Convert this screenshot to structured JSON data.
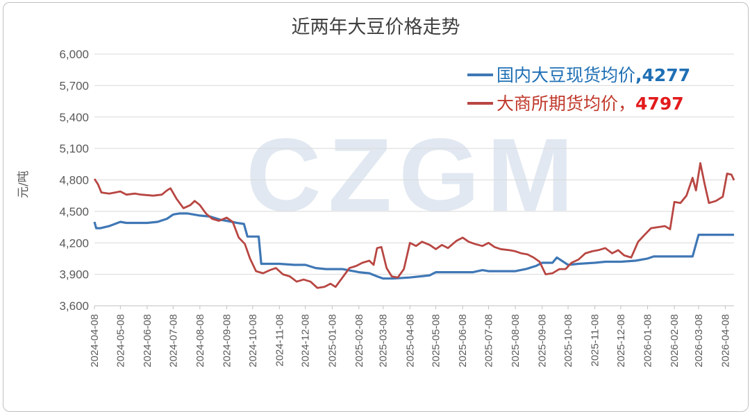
{
  "watermark": "CZGM",
  "chart_data": {
    "type": "line",
    "title": "近两年大豆价格走势",
    "ylabel": "元/吨",
    "xlabel": "",
    "ylim": [
      3600,
      6000
    ],
    "yticks": [
      "3,600",
      "3,900",
      "4,200",
      "4,500",
      "4,800",
      "5,100",
      "5,400",
      "5,700",
      "6,000"
    ],
    "ytick_values": [
      3600,
      3900,
      4200,
      4500,
      4800,
      5100,
      5400,
      5700,
      6000
    ],
    "xlim": [
      "2024-04-08",
      "2026-04-18"
    ],
    "xticks": [
      "2024-04-08",
      "2024-05-08",
      "2024-06-08",
      "2024-07-08",
      "2024-08-08",
      "2024-09-08",
      "2024-10-08",
      "2024-11-08",
      "2024-12-08",
      "2025-01-08",
      "2025-02-08",
      "2025-03-08",
      "2025-04-08",
      "2025-05-08",
      "2025-06-08",
      "2025-07-08",
      "2025-08-08",
      "2025-09-08",
      "2025-10-08",
      "2025-11-08",
      "2025-12-08",
      "2026-01-08",
      "2026-02-08",
      "2026-03-08",
      "2026-04-08"
    ],
    "grid": "horizontal",
    "legend_position": "top-right",
    "series": [
      {
        "name": "国内大豆现货均价",
        "legend_value": ",4277",
        "color": "#3f77b5",
        "legend_color": "#1f6fb4",
        "x": [
          "2024-04-08",
          "2024-04-10",
          "2024-04-15",
          "2024-04-25",
          "2024-05-08",
          "2024-05-15",
          "2024-05-25",
          "2024-06-08",
          "2024-06-20",
          "2024-07-01",
          "2024-07-08",
          "2024-07-15",
          "2024-07-25",
          "2024-08-01",
          "2024-08-08",
          "2024-08-20",
          "2024-09-01",
          "2024-09-08",
          "2024-09-20",
          "2024-09-28",
          "2024-10-02",
          "2024-10-08",
          "2024-10-15",
          "2024-10-18",
          "2024-11-01",
          "2024-11-08",
          "2024-11-25",
          "2024-12-08",
          "2024-12-20",
          "2025-01-01",
          "2025-01-08",
          "2025-01-20",
          "2025-02-08",
          "2025-02-20",
          "2025-03-01",
          "2025-03-08",
          "2025-03-20",
          "2025-04-08",
          "2025-04-20",
          "2025-05-01",
          "2025-05-08",
          "2025-06-08",
          "2025-06-20",
          "2025-07-01",
          "2025-07-08",
          "2025-08-08",
          "2025-08-20",
          "2025-09-01",
          "2025-09-08",
          "2025-09-20",
          "2025-09-25",
          "2025-10-08",
          "2025-10-20",
          "2025-11-08",
          "2025-11-20",
          "2025-12-08",
          "2025-12-25",
          "2026-01-08",
          "2026-01-15",
          "2026-02-08",
          "2026-02-20",
          "2026-03-01",
          "2026-03-08",
          "2026-03-20",
          "2026-04-08",
          "2026-04-18"
        ],
        "values": [
          4400,
          4340,
          4340,
          4360,
          4400,
          4390,
          4390,
          4390,
          4400,
          4430,
          4470,
          4480,
          4480,
          4470,
          4460,
          4450,
          4420,
          4410,
          4390,
          4380,
          4260,
          4260,
          4260,
          4000,
          4000,
          4000,
          3990,
          3990,
          3960,
          3950,
          3950,
          3950,
          3920,
          3910,
          3880,
          3860,
          3860,
          3870,
          3880,
          3890,
          3920,
          3920,
          3920,
          3940,
          3930,
          3930,
          3950,
          3980,
          4010,
          4010,
          4060,
          3990,
          4000,
          4010,
          4020,
          4020,
          4030,
          4050,
          4070,
          4070,
          4070,
          4070,
          4277,
          4277,
          4277,
          4277
        ]
      },
      {
        "name": "大商所期货均价",
        "legend_value": "4797",
        "color": "#b84642",
        "legend_color": "#c0392b",
        "legend_value_color": "#e31a1c",
        "x": [
          "2024-04-08",
          "2024-04-12",
          "2024-04-16",
          "2024-04-25",
          "2024-05-02",
          "2024-05-08",
          "2024-05-15",
          "2024-05-25",
          "2024-06-01",
          "2024-06-15",
          "2024-06-25",
          "2024-07-01",
          "2024-07-05",
          "2024-07-12",
          "2024-07-20",
          "2024-07-28",
          "2024-08-02",
          "2024-08-08",
          "2024-08-15",
          "2024-08-22",
          "2024-08-30",
          "2024-09-08",
          "2024-09-15",
          "2024-09-22",
          "2024-09-29",
          "2024-10-05",
          "2024-10-12",
          "2024-10-20",
          "2024-10-28",
          "2024-11-04",
          "2024-11-12",
          "2024-11-20",
          "2024-11-28",
          "2024-12-06",
          "2024-12-14",
          "2024-12-22",
          "2024-12-30",
          "2025-01-06",
          "2025-01-12",
          "2025-01-20",
          "2025-01-28",
          "2025-02-05",
          "2025-02-12",
          "2025-02-20",
          "2025-02-25",
          "2025-03-01",
          "2025-03-06",
          "2025-03-12",
          "2025-03-18",
          "2025-03-25",
          "2025-04-01",
          "2025-04-08",
          "2025-04-15",
          "2025-04-22",
          "2025-05-01",
          "2025-05-08",
          "2025-05-15",
          "2025-05-22",
          "2025-06-01",
          "2025-06-08",
          "2025-06-15",
          "2025-06-22",
          "2025-07-01",
          "2025-07-08",
          "2025-07-15",
          "2025-07-22",
          "2025-08-01",
          "2025-08-08",
          "2025-08-15",
          "2025-08-22",
          "2025-08-29",
          "2025-09-05",
          "2025-09-12",
          "2025-09-20",
          "2025-09-28",
          "2025-10-05",
          "2025-10-12",
          "2025-10-20",
          "2025-10-28",
          "2025-11-05",
          "2025-11-12",
          "2025-11-20",
          "2025-11-28",
          "2025-12-05",
          "2025-12-12",
          "2025-12-20",
          "2025-12-28",
          "2026-01-05",
          "2026-01-12",
          "2026-01-20",
          "2026-01-28",
          "2026-02-03",
          "2026-02-08",
          "2026-02-15",
          "2026-02-22",
          "2026-03-01",
          "2026-03-05",
          "2026-03-10",
          "2026-03-15",
          "2026-03-20",
          "2026-03-28",
          "2026-04-05",
          "2026-04-10",
          "2026-04-15",
          "2026-04-18"
        ],
        "values": [
          4810,
          4760,
          4680,
          4670,
          4680,
          4690,
          4660,
          4670,
          4660,
          4650,
          4660,
          4700,
          4720,
          4620,
          4530,
          4560,
          4600,
          4560,
          4480,
          4430,
          4410,
          4440,
          4400,
          4250,
          4190,
          4050,
          3930,
          3910,
          3940,
          3960,
          3900,
          3880,
          3830,
          3850,
          3830,
          3770,
          3780,
          3810,
          3780,
          3870,
          3960,
          3980,
          4010,
          4030,
          3990,
          4150,
          4160,
          3960,
          3880,
          3870,
          3950,
          4200,
          4170,
          4210,
          4180,
          4140,
          4180,
          4150,
          4220,
          4250,
          4210,
          4190,
          4170,
          4200,
          4160,
          4140,
          4130,
          4120,
          4100,
          4090,
          4060,
          4020,
          3900,
          3910,
          3950,
          3950,
          4010,
          4040,
          4100,
          4120,
          4130,
          4150,
          4100,
          4130,
          4080,
          4060,
          4210,
          4280,
          4340,
          4350,
          4360,
          4330,
          4590,
          4580,
          4650,
          4820,
          4700,
          4960,
          4760,
          4580,
          4600,
          4640,
          4860,
          4850,
          4797
        ]
      }
    ]
  }
}
